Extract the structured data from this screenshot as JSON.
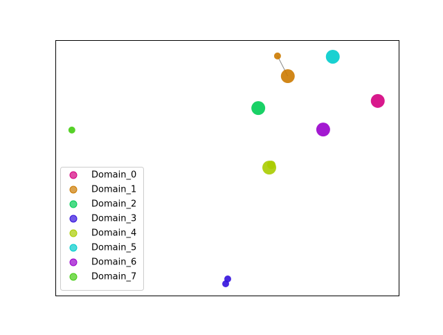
{
  "chart_data": {
    "type": "scatter",
    "xlim": [
      0,
      100
    ],
    "ylim": [
      0,
      100
    ],
    "legend": "lower left",
    "series": [
      {
        "name": "Domain_0",
        "color": "#d4007f",
        "x": [
          93.9
        ],
        "y": [
          76.2
        ],
        "sizes": [
          10
        ]
      },
      {
        "name": "Domain_1",
        "color": "#cc7a00",
        "x": [
          67.7,
          64.7
        ],
        "y": [
          85.9,
          93.8
        ],
        "sizes": [
          10,
          5
        ]
      },
      {
        "name": "Domain_2",
        "color": "#00cc55",
        "x": [
          59.1
        ],
        "y": [
          73.4
        ],
        "sizes": [
          10
        ]
      },
      {
        "name": "Domain_3",
        "color": "#3311dd",
        "x": [
          50.2,
          49.6
        ],
        "y": [
          6.5,
          4.6
        ],
        "sizes": [
          5,
          5
        ]
      },
      {
        "name": "Domain_4",
        "color": "#aacc00",
        "x": [
          62.3,
          62.9
        ],
        "y": [
          50.1,
          51.2
        ],
        "sizes": [
          10,
          6
        ]
      },
      {
        "name": "Domain_5",
        "color": "#00cccc",
        "x": [
          80.8
        ],
        "y": [
          93.5
        ],
        "sizes": [
          10
        ]
      },
      {
        "name": "Domain_6",
        "color": "#9900cc",
        "x": [
          78.0
        ],
        "y": [
          65.0
        ],
        "sizes": [
          10
        ]
      },
      {
        "name": "Domain_7",
        "color": "#44cc11",
        "x": [
          4.8
        ],
        "y": [
          64.8
        ],
        "sizes": [
          5
        ]
      }
    ]
  }
}
